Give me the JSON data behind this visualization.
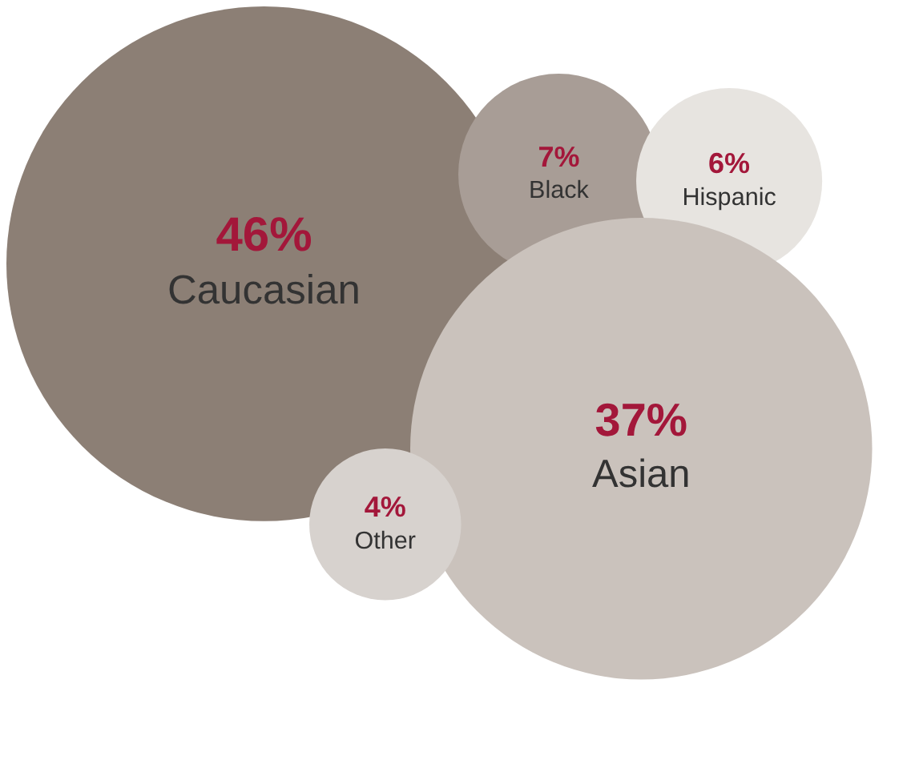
{
  "chart_data": {
    "type": "other",
    "categories": [
      "Caucasian",
      "Black",
      "Hispanic",
      "Asian",
      "Other"
    ],
    "values": [
      46,
      7,
      6,
      37,
      4
    ],
    "value_labels": [
      "46%",
      "7%",
      "6%",
      "37%",
      "4%"
    ],
    "colors": [
      "#8c7f75",
      "#a89d96",
      "#e7e4e0",
      "#cac2bc",
      "#d7d2ce"
    ]
  }
}
